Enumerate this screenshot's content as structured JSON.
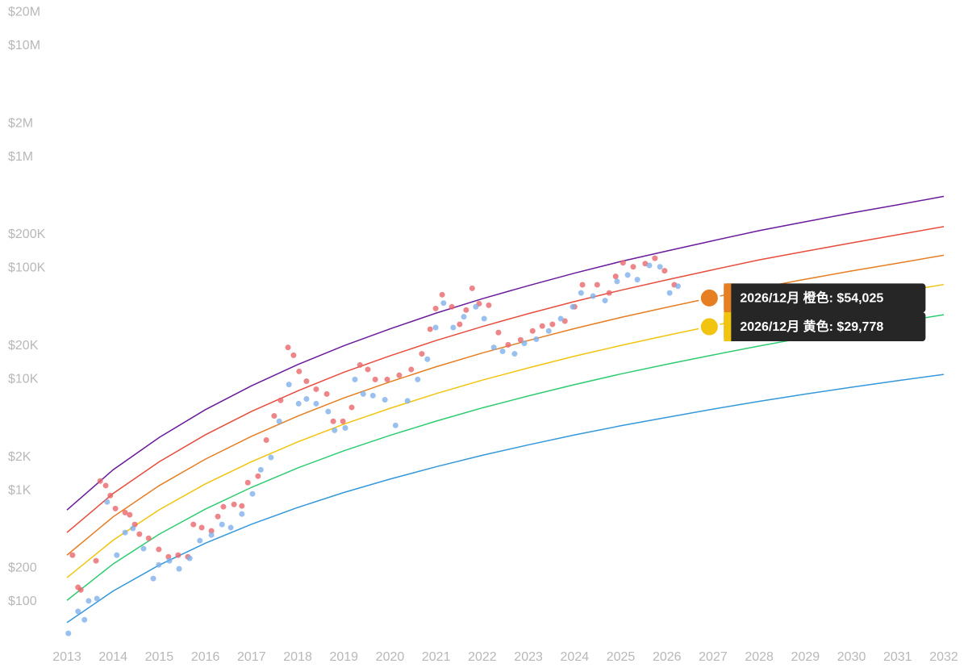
{
  "chart_data": [
    {
      "type": "line",
      "log_y": true,
      "grid": false,
      "xlim": [
        2013,
        2032
      ],
      "ylim": [
        50,
        25000000
      ],
      "xticks": [
        2013,
        2014,
        2015,
        2016,
        2017,
        2018,
        2019,
        2020,
        2021,
        2022,
        2023,
        2024,
        2025,
        2026,
        2027,
        2028,
        2029,
        2030,
        2031,
        2032
      ],
      "yticks": [
        {
          "value": 100,
          "label": "$100"
        },
        {
          "value": 200,
          "label": "$200"
        },
        {
          "value": 1000,
          "label": "$1K"
        },
        {
          "value": 2000,
          "label": "$2K"
        },
        {
          "value": 10000,
          "label": "$10K"
        },
        {
          "value": 20000,
          "label": "$20K"
        },
        {
          "value": 100000,
          "label": "$100K"
        },
        {
          "value": 200000,
          "label": "$200K"
        },
        {
          "value": 1000000,
          "label": "$1M"
        },
        {
          "value": 2000000,
          "label": "$2M"
        },
        {
          "value": 10000000,
          "label": "$10M"
        },
        {
          "value": 20000000,
          "label": "$20M"
        }
      ],
      "x": [
        2013,
        2014,
        2015,
        2016,
        2017,
        2018,
        2019,
        2020,
        2021,
        2022,
        2023,
        2024,
        2025,
        2026,
        2027,
        2028,
        2029,
        2030,
        2031,
        2032
      ],
      "series": [
        {
          "color": "#6a1b9a",
          "values": [
            670,
            1540,
            3010,
            5350,
            8770,
            13600,
            20100,
            28500,
            39500,
            53200,
            69800,
            90400,
            115000,
            143000,
            177000,
            218000,
            262000,
            314000,
            372000,
            443000
          ]
        },
        {
          "color": "#e74c3c",
          "values": [
            420,
            942,
            1820,
            3180,
            5160,
            7890,
            11600,
            16300,
            22400,
            29900,
            39100,
            50200,
            63400,
            78700,
            97000,
            119000,
            142000,
            169000,
            200000,
            237000
          ]
        },
        {
          "color": "#e67e22",
          "values": [
            263,
            581,
            1110,
            1920,
            3080,
            4680,
            6810,
            9510,
            13000,
            17300,
            22400,
            28700,
            36100,
            44600,
            54700,
            66500,
            79600,
            94600,
            111000,
            131000
          ]
        },
        {
          "color": "#f1c40f",
          "values": [
            165,
            358,
            673,
            1150,
            1820,
            2740,
            3960,
            5500,
            7450,
            9860,
            12700,
            16200,
            20200,
            24900,
            30400,
            36800,
            44000,
            51900,
            61000,
            71400
          ]
        },
        {
          "color": "#2ecc71",
          "values": [
            103,
            219,
            406,
            682,
            1070,
            1600,
            2280,
            3140,
            4220,
            5550,
            7110,
            8980,
            11200,
            13700,
            16600,
            20000,
            23800,
            28000,
            32700,
            38200
          ]
        },
        {
          "color": "#3498db",
          "values": [
            65,
            125,
            214,
            337,
            499,
            705,
            962,
            1270,
            1640,
            2080,
            2580,
            3170,
            3830,
            4560,
            5410,
            6350,
            7380,
            8510,
            9750,
            11100
          ]
        }
      ],
      "annotations": [
        {
          "x": 2026.92,
          "value": 54025,
          "label": "2026/12月 橙色: $54,025",
          "color": "#e67e22"
        },
        {
          "x": 2026.92,
          "value": 29778,
          "label": "2026/12月 黄色: $29,778",
          "color": "#f1c40f"
        }
      ]
    },
    {
      "type": "scatter",
      "series": [
        {
          "color": "#e8676b",
          "x": [
            2013.12,
            2013.24,
            2013.3,
            2013.63,
            2013.72,
            2013.84,
            2013.94,
            2014.05,
            2014.26,
            2014.36,
            2014.47,
            2014.57,
            2014.77,
            2014.99,
            2015.2,
            2015.41,
            2015.62,
            2015.74,
            2015.92,
            2016.13,
            2016.27,
            2016.39,
            2016.62,
            2016.79,
            2016.92,
            2017.14,
            2017.32,
            2017.49,
            2017.63,
            2017.79,
            2017.91,
            2018.03,
            2018.19,
            2018.4,
            2018.63,
            2018.77,
            2018.98,
            2019.17,
            2019.35,
            2019.52,
            2019.68,
            2019.94,
            2020.2,
            2020.46,
            2020.69,
            2020.87,
            2020.99,
            2021.13,
            2021.34,
            2021.51,
            2021.65,
            2021.78,
            2021.93,
            2022.14,
            2022.35,
            2022.56,
            2022.83,
            2023.09,
            2023.3,
            2023.52,
            2023.79,
            2024.0,
            2024.17,
            2024.49,
            2024.75,
            2024.89,
            2025.05,
            2025.27,
            2025.53,
            2025.74,
            2025.95,
            2026.16
          ],
          "values": [
            263,
            135,
            128,
            234,
            1220,
            1110,
            903,
            690,
            635,
            606,
            496,
            406,
            373,
            296,
            254,
            263,
            254,
            496,
            465,
            434,
            585,
            716,
            752,
            728,
            1180,
            1350,
            2850,
            4700,
            6490,
            19400,
            16500,
            11800,
            9640,
            8170,
            7400,
            4200,
            4200,
            5600,
            13500,
            12300,
            10000,
            10000,
            10900,
            12300,
            17000,
            28300,
            43500,
            57800,
            45000,
            31300,
            42100,
            66000,
            48000,
            46500,
            26400,
            20500,
            22700,
            27300,
            30200,
            31300,
            33500,
            45000,
            71000,
            71000,
            60000,
            84500,
            112000,
            103000,
            110000,
            123000,
            94900,
            71000
          ]
        },
        {
          "color": "#7fb0ea",
          "x": [
            2013.03,
            2013.24,
            2013.38,
            2013.47,
            2013.65,
            2013.87,
            2014.08,
            2014.26,
            2014.43,
            2014.66,
            2014.87,
            2014.99,
            2015.22,
            2015.43,
            2015.66,
            2015.88,
            2016.13,
            2016.36,
            2016.55,
            2016.79,
            2017.02,
            2017.2,
            2017.42,
            2017.6,
            2017.81,
            2018.02,
            2018.19,
            2018.4,
            2018.66,
            2018.8,
            2019.03,
            2019.24,
            2019.42,
            2019.63,
            2019.89,
            2020.12,
            2020.38,
            2020.6,
            2020.81,
            2020.99,
            2021.16,
            2021.37,
            2021.6,
            2021.86,
            2022.04,
            2022.25,
            2022.44,
            2022.7,
            2022.91,
            2023.17,
            2023.44,
            2023.7,
            2023.96,
            2024.14,
            2024.4,
            2024.66,
            2024.92,
            2025.15,
            2025.36,
            2025.62,
            2025.85,
            2026.06,
            2026.24
          ],
          "values": [
            52,
            82,
            69,
            102,
            107,
            791,
            263,
            420,
            457,
            301,
            162,
            215,
            234,
            198,
            246,
            355,
            399,
            496,
            465,
            616,
            935,
            1540,
            1990,
            4200,
            9000,
            6050,
            6680,
            6050,
            5140,
            3490,
            3660,
            10000,
            7400,
            7160,
            6570,
            3860,
            6420,
            10000,
            15200,
            29300,
            48600,
            29300,
            36600,
            45000,
            35200,
            19400,
            17900,
            17000,
            21100,
            23000,
            27300,
            35200,
            45000,
            60000,
            56200,
            51200,
            76100,
            87000,
            79000,
            106000,
            103000,
            60000,
            69000
          ]
        }
      ]
    }
  ]
}
